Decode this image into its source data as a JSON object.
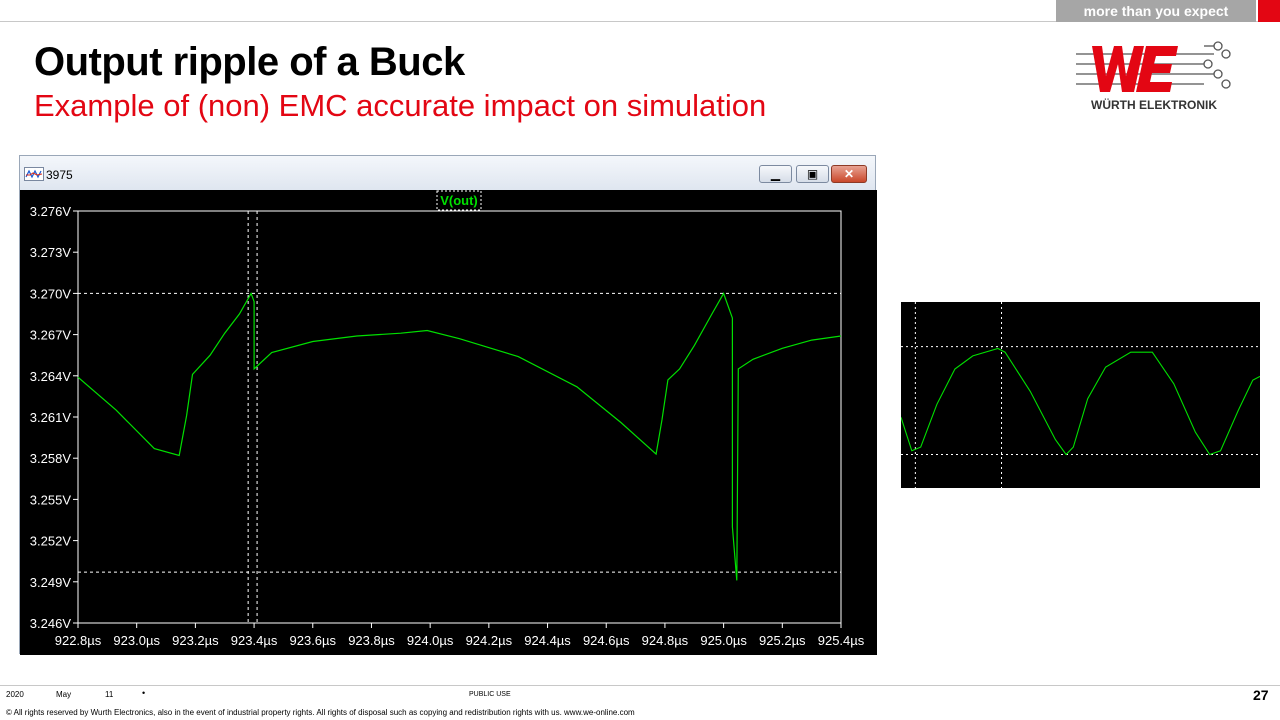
{
  "header": {
    "tagline": "more than you expect",
    "title": "Output ripple of a Buck",
    "subtitle": "Example of (non) EMC accurate impact on simulation",
    "logo_text": "WÜRTH ELEKTRONIK",
    "colors": {
      "brand_red": "#e30613",
      "tag_gray": "#a6a6a6"
    }
  },
  "window": {
    "title": "3975",
    "icon": "waveform-icon",
    "buttons": {
      "minimize": "minimize-icon",
      "maximize": "maximize-icon",
      "close": "close-icon"
    }
  },
  "chart_data": [
    {
      "type": "line",
      "title": "",
      "legend_label": "V(out)",
      "xlabel": "",
      "ylabel": "",
      "xlim": [
        922.8,
        925.4
      ],
      "ylim": [
        3.246,
        3.276
      ],
      "x_ticks": [
        922.8,
        923.0,
        923.2,
        923.4,
        923.6,
        923.8,
        924.0,
        924.2,
        924.4,
        924.6,
        924.8,
        925.0,
        925.2,
        925.4
      ],
      "x_tick_labels": [
        "922.8µs",
        "923.0µs",
        "923.2µs",
        "923.4µs",
        "923.6µs",
        "923.8µs",
        "924.0µs",
        "924.2µs",
        "924.4µs",
        "924.6µs",
        "924.8µs",
        "925.0µs",
        "925.2µs",
        "925.4µs"
      ],
      "y_ticks": [
        3.276,
        3.273,
        3.27,
        3.267,
        3.264,
        3.261,
        3.258,
        3.255,
        3.252,
        3.249,
        3.246
      ],
      "y_tick_labels": [
        "3.276V",
        "3.273V",
        "3.270V",
        "3.267V",
        "3.264V",
        "3.261V",
        "3.258V",
        "3.255V",
        "3.252V",
        "3.249V",
        "3.246V"
      ],
      "cursors_x": [
        923.39,
        923.4
      ],
      "cursors_y": [
        3.27,
        3.2497
      ],
      "series": [
        {
          "name": "V(out)",
          "color": "#00e000",
          "points": [
            [
              922.8,
              3.2639
            ],
            [
              922.93,
              3.2615
            ],
            [
              923.06,
              3.2587
            ],
            [
              923.145,
              3.2582
            ],
            [
              923.17,
              3.2611
            ],
            [
              923.19,
              3.2641
            ],
            [
              923.25,
              3.2655
            ],
            [
              923.3,
              3.2671
            ],
            [
              923.35,
              3.2685
            ],
            [
              923.39,
              3.27
            ],
            [
              923.4,
              3.2694
            ],
            [
              923.4,
              3.2645
            ],
            [
              923.46,
              3.2657
            ],
            [
              923.6,
              3.2665
            ],
            [
              923.75,
              3.2669
            ],
            [
              923.9,
              3.2671
            ],
            [
              923.99,
              3.2673
            ],
            [
              924.1,
              3.2667
            ],
            [
              924.3,
              3.2654
            ],
            [
              924.5,
              3.2632
            ],
            [
              924.65,
              3.2606
            ],
            [
              924.77,
              3.2583
            ],
            [
              924.79,
              3.2608
            ],
            [
              924.81,
              3.2637
            ],
            [
              924.85,
              3.2645
            ],
            [
              924.9,
              3.2662
            ],
            [
              924.96,
              3.2685
            ],
            [
              925.0,
              3.27
            ],
            [
              925.03,
              3.2682
            ],
            [
              925.03,
              3.253
            ],
            [
              925.045,
              3.2491
            ],
            [
              925.05,
              3.2645
            ],
            [
              925.1,
              3.2652
            ],
            [
              925.2,
              3.266
            ],
            [
              925.3,
              3.2666
            ],
            [
              925.4,
              3.2669
            ]
          ]
        }
      ]
    },
    {
      "type": "line",
      "title": "",
      "xlim": [
        0,
        1
      ],
      "ylim": [
        0,
        1
      ],
      "grid_lines_y": [
        0.76,
        0.18
      ],
      "grid_lines_x": [
        0.04,
        0.28
      ],
      "series": [
        {
          "name": "",
          "color": "#00e000",
          "points": [
            [
              0,
              0.38
            ],
            [
              0.03,
              0.2
            ],
            [
              0.055,
              0.22
            ],
            [
              0.1,
              0.45
            ],
            [
              0.15,
              0.64
            ],
            [
              0.2,
              0.71
            ],
            [
              0.27,
              0.75
            ],
            [
              0.29,
              0.73
            ],
            [
              0.36,
              0.52
            ],
            [
              0.43,
              0.26
            ],
            [
              0.46,
              0.18
            ],
            [
              0.48,
              0.22
            ],
            [
              0.52,
              0.48
            ],
            [
              0.57,
              0.65
            ],
            [
              0.64,
              0.73
            ],
            [
              0.7,
              0.73
            ],
            [
              0.76,
              0.56
            ],
            [
              0.82,
              0.3
            ],
            [
              0.86,
              0.18
            ],
            [
              0.89,
              0.2
            ],
            [
              0.94,
              0.42
            ],
            [
              0.98,
              0.58
            ],
            [
              1.0,
              0.6
            ]
          ]
        }
      ]
    }
  ],
  "footer": {
    "year": "2020",
    "month": "May",
    "day": "11",
    "bullet": "•",
    "classification": "PUBLIC USE",
    "page": "27",
    "rights": "© All rights reserved by Wurth Electronics, also in the event of industrial property rights. All rights of disposal such as copying and redistribution rights with us. www.we-online.com"
  }
}
